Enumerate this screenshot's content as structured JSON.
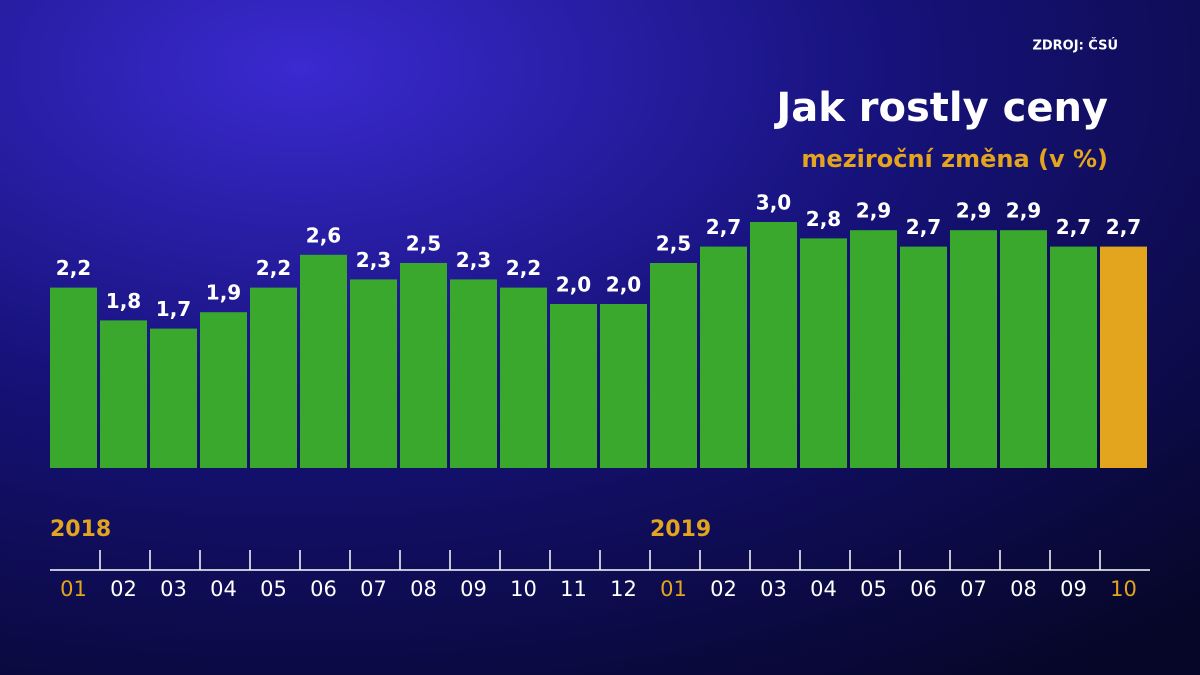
{
  "chart_data": {
    "type": "bar",
    "title": "Jak rostly ceny",
    "subtitle": "meziroční změna (v %)",
    "source": "ZDROJ: ČSÚ",
    "categories": [
      "01",
      "02",
      "03",
      "04",
      "05",
      "06",
      "07",
      "08",
      "09",
      "10",
      "11",
      "12",
      "01",
      "02",
      "03",
      "04",
      "05",
      "06",
      "07",
      "08",
      "09",
      "10"
    ],
    "values": [
      2.2,
      1.8,
      1.7,
      1.9,
      2.2,
      2.6,
      2.3,
      2.5,
      2.3,
      2.2,
      2.0,
      2.0,
      2.5,
      2.7,
      3.0,
      2.8,
      2.9,
      2.7,
      2.9,
      2.9,
      2.7,
      2.7
    ],
    "value_labels": [
      "2,2",
      "1,8",
      "1,7",
      "1,9",
      "2,2",
      "2,6",
      "2,3",
      "2,5",
      "2,3",
      "2,2",
      "2,0",
      "2,0",
      "2,5",
      "2,7",
      "3,0",
      "2,8",
      "2,9",
      "2,7",
      "2,9",
      "2,9",
      "2,7",
      "2,7"
    ],
    "colors": [
      "#3aa82c",
      "#3aa82c",
      "#3aa82c",
      "#3aa82c",
      "#3aa82c",
      "#3aa82c",
      "#3aa82c",
      "#3aa82c",
      "#3aa82c",
      "#3aa82c",
      "#3aa82c",
      "#3aa82c",
      "#3aa82c",
      "#3aa82c",
      "#3aa82c",
      "#3aa82c",
      "#3aa82c",
      "#3aa82c",
      "#3aa82c",
      "#3aa82c",
      "#3aa82c",
      "#e3a41e"
    ],
    "category_colors": [
      "#e3a41e",
      "#ffffff",
      "#ffffff",
      "#ffffff",
      "#ffffff",
      "#ffffff",
      "#ffffff",
      "#ffffff",
      "#ffffff",
      "#ffffff",
      "#ffffff",
      "#ffffff",
      "#e3a41e",
      "#ffffff",
      "#ffffff",
      "#ffffff",
      "#ffffff",
      "#ffffff",
      "#ffffff",
      "#ffffff",
      "#ffffff",
      "#e3a41e"
    ],
    "annotations": [
      {
        "text": "2018",
        "category": 0
      },
      {
        "text": "2019",
        "category": 12
      }
    ]
  }
}
